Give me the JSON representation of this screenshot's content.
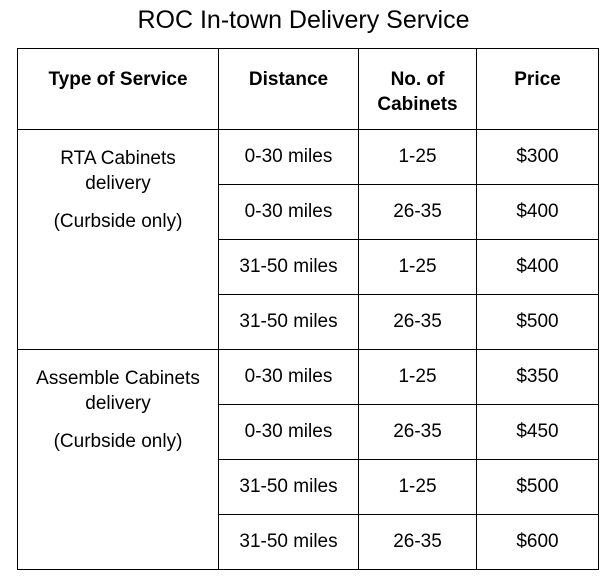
{
  "title": "ROC In-town Delivery Service",
  "table": {
    "header": [
      "Type of Service",
      "Distance",
      "No. of Cabinets",
      "Price"
    ],
    "groups": [
      {
        "service": {
          "name": "RTA Cabinets delivery",
          "note": "(Curbside only)"
        },
        "rows": [
          [
            "0-30 miles",
            "1-25",
            "$300"
          ],
          [
            "0-30 miles",
            "26-35",
            "$400"
          ],
          [
            "31-50 miles",
            "1-25",
            "$400"
          ],
          [
            "31-50 miles",
            "26-35",
            "$500"
          ]
        ]
      },
      {
        "service": {
          "name": "Assemble Cabinets delivery",
          "note": "(Curbside only)"
        },
        "rows": [
          [
            "0-30 miles",
            "1-25",
            "$350"
          ],
          [
            "0-30 miles",
            "26-35",
            "$450"
          ],
          [
            "31-50 miles",
            "1-25",
            "$500"
          ],
          [
            "31-50 miles",
            "26-35",
            "$600"
          ]
        ]
      }
    ]
  }
}
